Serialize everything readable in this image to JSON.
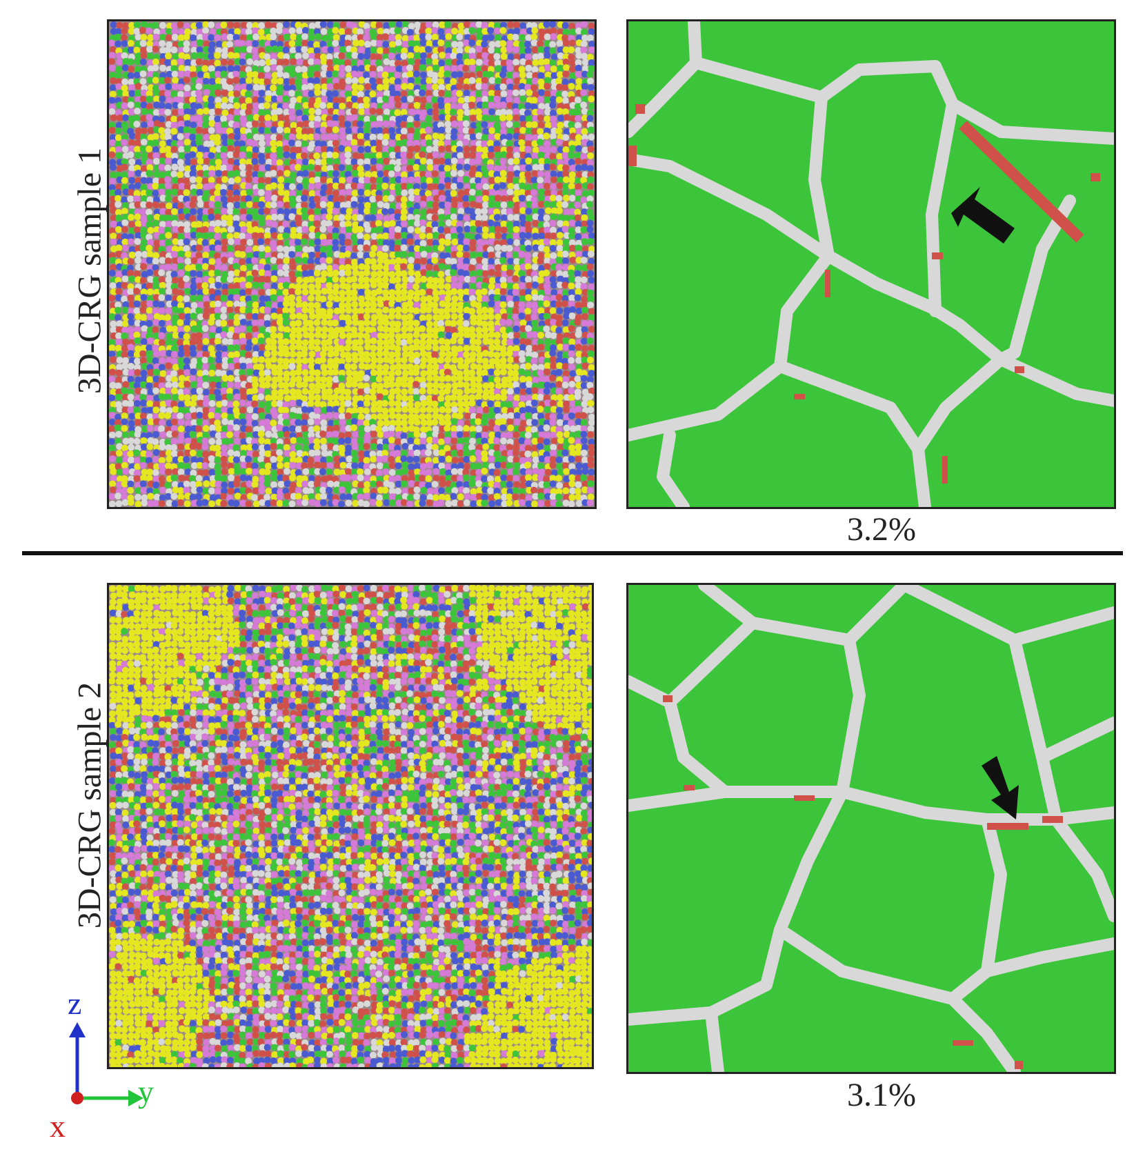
{
  "figure": {
    "rows": [
      {
        "label": "3D-CRG sample 1",
        "strain": "3.2%"
      },
      {
        "label": "3D-CRG sample 2",
        "strain": "3.1%"
      }
    ],
    "axes": {
      "x": "x",
      "y": "y",
      "z": "z"
    },
    "colors": {
      "fcc": "#3cc43a",
      "boundary": "#d8d8d8",
      "hcp": "#d0504a",
      "bcc": "#4a5ad0",
      "other_yellow": "#e4e620",
      "other_pink": "#d67ad8",
      "arrow": "#111111"
    }
  }
}
